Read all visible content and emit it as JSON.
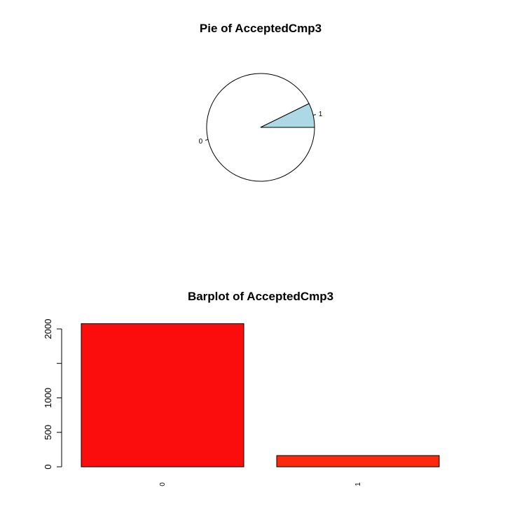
{
  "chart_data": [
    {
      "type": "pie",
      "title": "Pie of AcceptedCmp3",
      "labels": [
        "0",
        "1"
      ],
      "values": [
        2077,
        163
      ],
      "colors": [
        "#ffffff",
        "#add8e6"
      ]
    },
    {
      "type": "bar",
      "title": "Barplot of AcceptedCmp3",
      "categories": [
        "0",
        "1"
      ],
      "values": [
        2077,
        163
      ],
      "ylim": [
        0,
        2000
      ],
      "yticks": [
        0,
        500,
        1000,
        1500,
        2000
      ],
      "ytick_labels": [
        "0",
        "500",
        "1000",
        "",
        "2000"
      ],
      "colors": [
        "#fc0d0d",
        "#fc2a0d"
      ]
    }
  ]
}
